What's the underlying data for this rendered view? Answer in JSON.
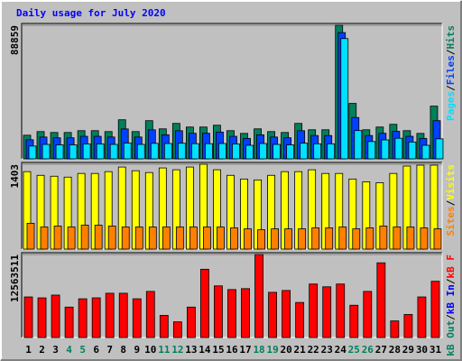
{
  "chart_data": {
    "type": "bar",
    "title": "Daily usage for July 2020",
    "categories": [
      "1",
      "2",
      "3",
      "4",
      "5",
      "6",
      "7",
      "8",
      "9",
      "10",
      "11",
      "12",
      "13",
      "14",
      "15",
      "16",
      "17",
      "18",
      "19",
      "20",
      "21",
      "22",
      "23",
      "24",
      "25",
      "26",
      "27",
      "28",
      "29",
      "30",
      "31"
    ],
    "category_colors": [
      "#000000",
      "#000000",
      "#000000",
      "#00805C",
      "#00805C",
      "#000000",
      "#000000",
      "#000000",
      "#000000",
      "#000000",
      "#00805C",
      "#00805C",
      "#000000",
      "#000000",
      "#000000",
      "#000000",
      "#000000",
      "#00805C",
      "#00805C",
      "#000000",
      "#000000",
      "#000000",
      "#000000",
      "#000000",
      "#00805C",
      "#00805C",
      "#000000",
      "#000000",
      "#000000",
      "#000000",
      "#000000"
    ],
    "legend_separator": "/",
    "panels": [
      {
        "ylim": [
          0,
          88859
        ],
        "yticks": [
          88859
        ],
        "series": [
          {
            "name": "Hits",
            "color": "#00805C",
            "values": [
              15717,
              18135,
              17531,
              17531,
              18740,
              18740,
              18135,
              25994,
              18135,
              25389,
              19949,
              23576,
              21158,
              21158,
              22367,
              18740,
              16926,
              19949,
              18135,
              17531,
              23576,
              19344,
              19344,
              88859,
              36875,
              19344,
              21158,
              22971,
              18740,
              16926,
              35061
            ]
          },
          {
            "name": "Files",
            "color": "#0040FF",
            "values": [
              12700,
              14500,
              14000,
              14000,
              15000,
              15000,
              14500,
              19900,
              14500,
              19300,
              16000,
              18700,
              17000,
              17000,
              17800,
              15000,
              13600,
              16000,
              14500,
              14000,
              18700,
              15500,
              15500,
              84000,
              27500,
              15500,
              17000,
              18300,
              15000,
              13600,
              25400
            ]
          },
          {
            "name": "Pages",
            "color": "#00E0FF",
            "values": [
              8500,
              9600,
              9300,
              9300,
              9900,
              9900,
              9600,
              10500,
              9600,
              10300,
              10200,
              10400,
              10100,
              10100,
              10200,
              9900,
              9000,
              10200,
              9600,
              9300,
              10400,
              10000,
              10000,
              80000,
              18800,
              11500,
              12600,
              13700,
              11200,
              9000,
              13300
            ]
          }
        ]
      },
      {
        "ylim": [
          0,
          1403
        ],
        "yticks": [
          1403
        ],
        "series": [
          {
            "name": "Visits",
            "color": "#FFFF00",
            "values": [
              1281,
              1220,
              1205,
              1190,
              1251,
              1251,
              1281,
              1357,
              1296,
              1266,
              1342,
              1312,
              1357,
              1403,
              1312,
              1220,
              1159,
              1144,
              1220,
              1281,
              1281,
              1312,
              1251,
              1251,
              1159,
              1113,
              1098,
              1251,
              1373,
              1388,
              1388
            ]
          },
          {
            "name": "Sites",
            "color": "#FF8000",
            "values": [
              427,
              366,
              381,
              366,
              396,
              396,
              381,
              366,
              366,
              366,
              366,
              366,
              366,
              366,
              366,
              351,
              335,
              320,
              335,
              335,
              335,
              351,
              351,
              366,
              335,
              351,
              381,
              366,
              366,
              351,
              335
            ]
          }
        ]
      },
      {
        "ylim": [
          0,
          12563511
        ],
        "yticks": [
          12563511
        ],
        "series": [
          {
            "name": "kB F",
            "color": "#FF0000",
            "values": [
              6142180,
              6002585,
              6421370,
              4606635,
              5862990,
              6002585,
              6700560,
              6700560,
              5862990,
              6979750,
              3350280,
              2373115,
              4606635,
              10330030,
              7817320,
              7258940,
              7398535,
              12563511,
              6840155,
              7119345,
              5304610,
              8096510,
              7677725,
              8096510,
              4885825,
              6979750,
              11307195,
              2512710,
              3489875,
              6142180,
              8515295
            ]
          }
        ],
        "legend_extra": [
          {
            "name": "kB In",
            "color": "#0000FF"
          },
          {
            "name": "kB Out",
            "color": "#00805C"
          }
        ]
      }
    ]
  }
}
